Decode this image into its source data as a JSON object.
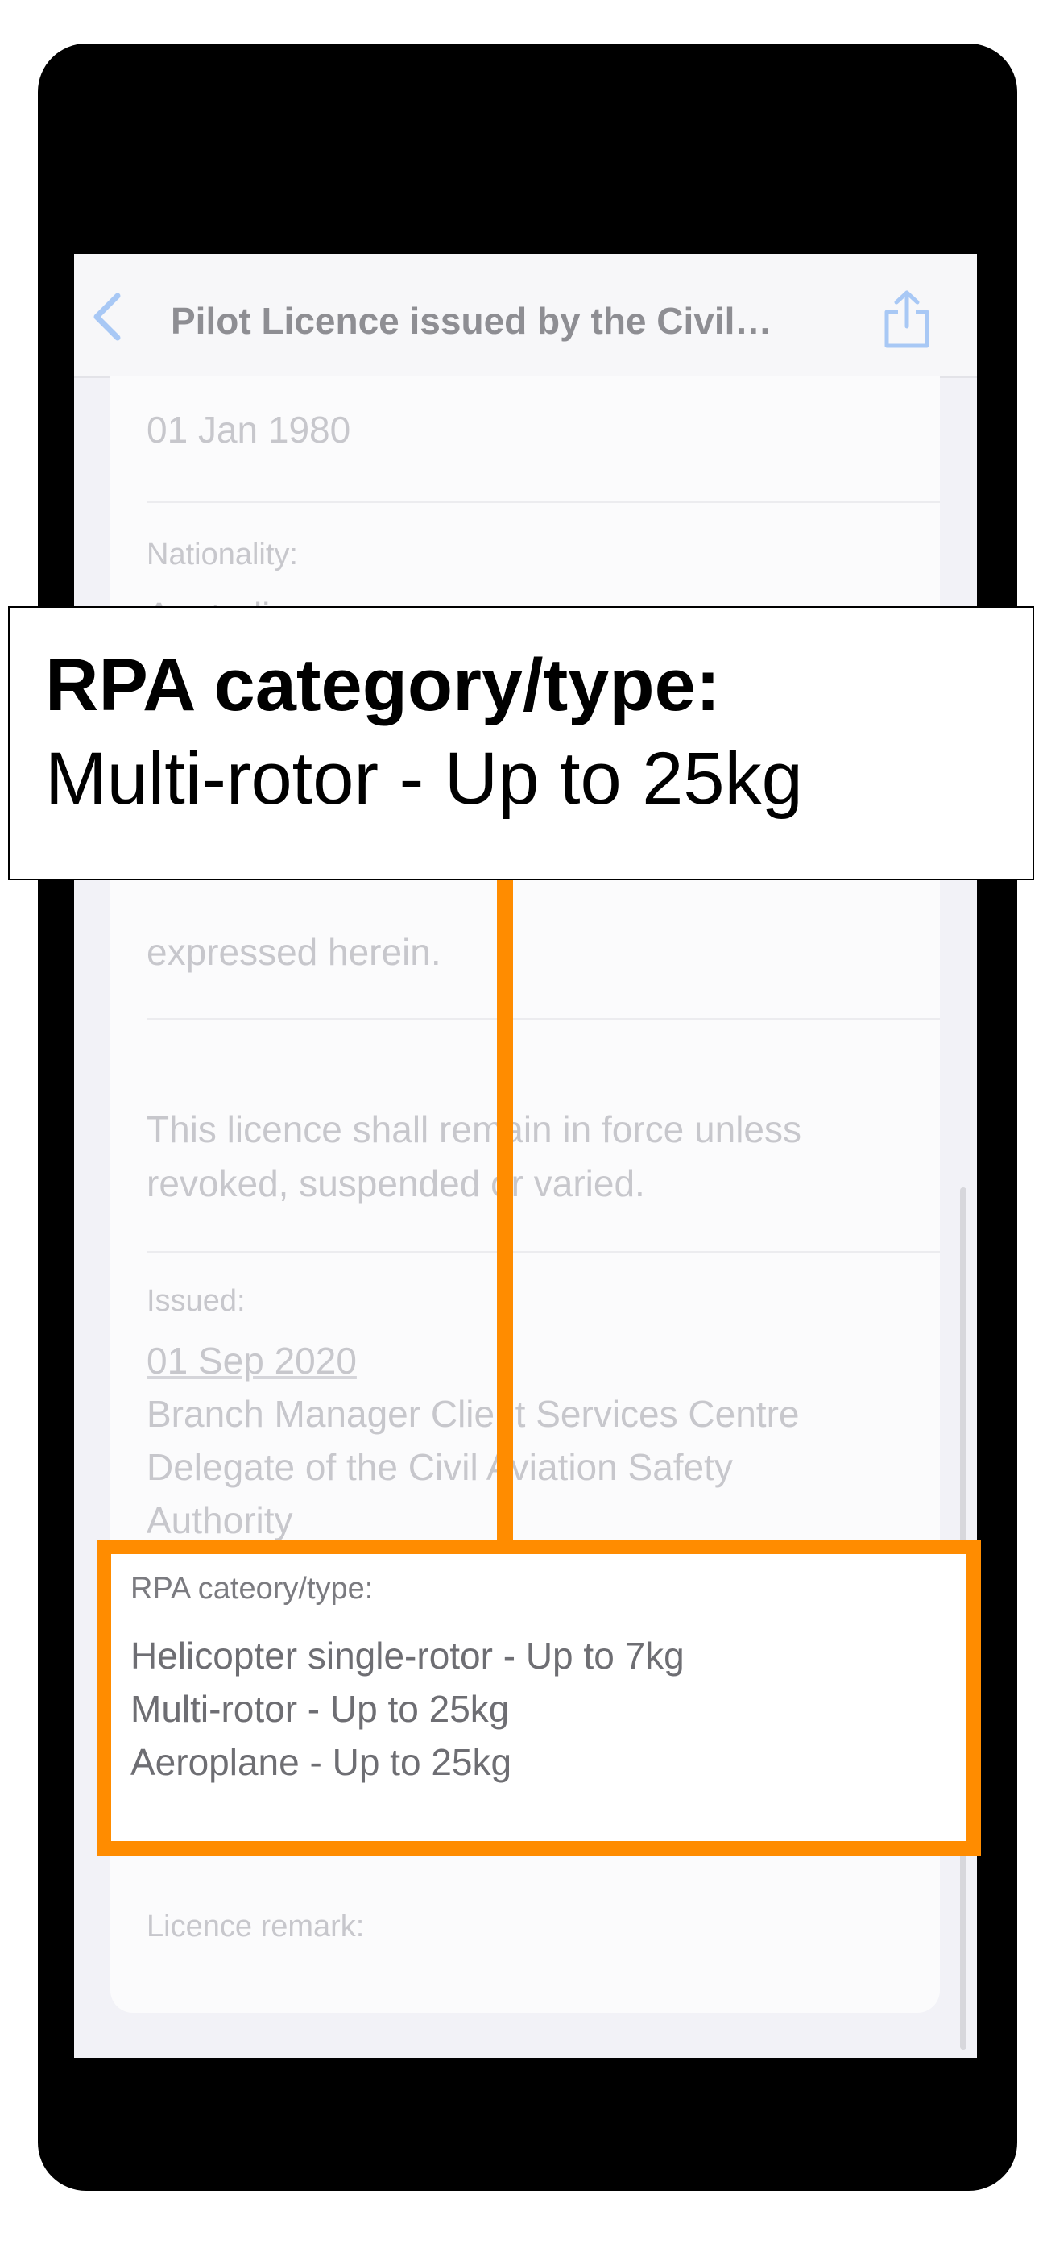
{
  "nav": {
    "title": "Pilot Licence issued by the Civil…"
  },
  "fields": {
    "dob_value": "01 Jan 1980",
    "nationality_label": "Nationality:",
    "nationality_value": "Australian",
    "expressed_text": "expressed herein.",
    "force_text_1": "This licence shall remain in force unless",
    "force_text_2": "revoked, suspended or varied.",
    "issued_label": "Issued:",
    "issued_date": "01 Sep 2020",
    "issued_line_1": "Branch Manager Client Services Centre",
    "issued_line_2": "Delegate of the Civil Aviation Safety",
    "issued_line_3": "Authority",
    "remark_label": "Licence remark:"
  },
  "rpa": {
    "label": "RPA cateory/type:",
    "types": [
      "Helicopter single-rotor - Up to 7kg",
      "Multi-rotor - Up to 25kg",
      "Aeroplane - Up to 25kg"
    ]
  },
  "callout": {
    "title": "RPA category/type:",
    "value": "Multi-rotor - Up to 25kg"
  },
  "colors": {
    "accent": "#ff8c00",
    "ios_blue": "#a8c8f5"
  },
  "icons": {
    "back": "chevron-left-icon",
    "share": "share-icon"
  }
}
